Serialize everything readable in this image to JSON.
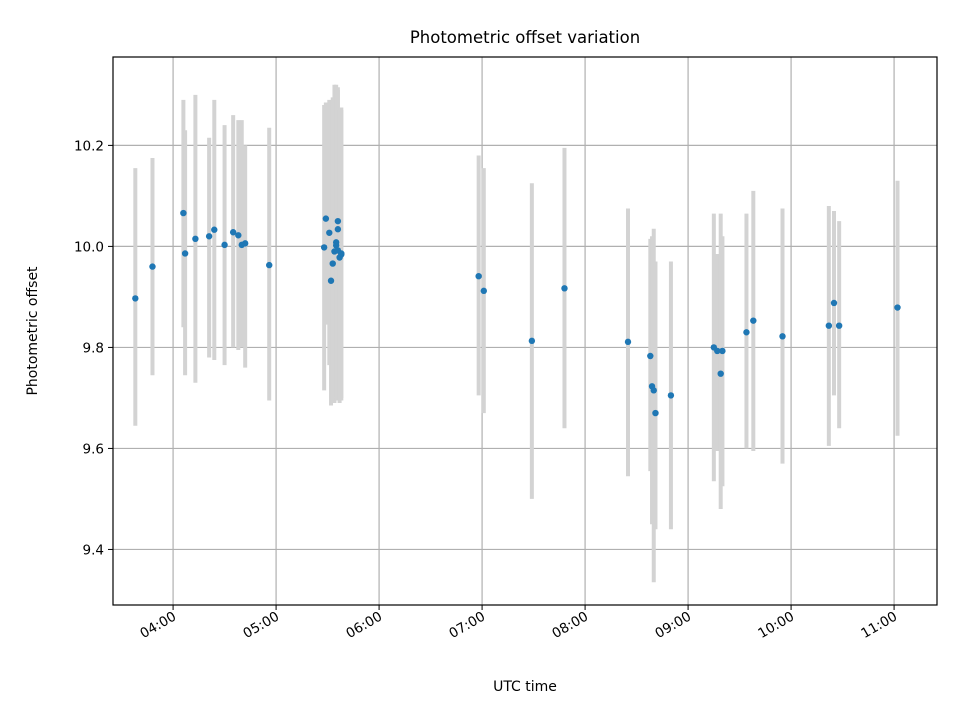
{
  "chart_data": {
    "type": "scatter",
    "title": "Photometric offset variation",
    "xlabel": "UTC time",
    "ylabel": "Photometric offset",
    "x_ticks": [
      "04:00",
      "05:00",
      "06:00",
      "07:00",
      "08:00",
      "09:00",
      "10:00",
      "11:00"
    ],
    "y_ticks": [
      "9.4",
      "9.6",
      "9.8",
      "10.0",
      "10.2"
    ],
    "xlim": [
      "03:25",
      "11:25"
    ],
    "ylim": [
      9.29,
      10.375
    ],
    "grid": true,
    "colors": {
      "point": "#1f77b4",
      "errorbar": "#d3d3d3",
      "grid": "#b0b0b0"
    },
    "series": [
      {
        "x": [
          "03:38",
          "03:48",
          "04:06",
          "04:07",
          "04:13",
          "04:21",
          "04:24",
          "04:30",
          "04:35",
          "04:38",
          "04:40",
          "04:42",
          "04:56",
          "05:28",
          "05:29",
          "05:31",
          "05:32",
          "05:33",
          "05:34",
          "05:35",
          "05:35",
          "05:36",
          "05:36",
          "05:36",
          "05:37",
          "05:38",
          "05:38",
          "06:58",
          "07:01",
          "07:29",
          "07:48",
          "08:25",
          "08:38",
          "08:39",
          "08:40",
          "08:41",
          "08:50",
          "09:15",
          "09:17",
          "09:19",
          "09:20",
          "09:34",
          "09:38",
          "09:55",
          "10:22",
          "10:25",
          "10:28",
          "11:02"
        ],
        "y": [
          9.897,
          9.96,
          10.066,
          9.986,
          10.015,
          10.02,
          10.033,
          10.003,
          10.028,
          10.022,
          10.003,
          10.006,
          9.963,
          9.998,
          10.055,
          10.027,
          9.932,
          9.966,
          9.99,
          10.002,
          10.008,
          9.992,
          10.034,
          10.05,
          9.978,
          9.984,
          9.986,
          9.941,
          9.912,
          9.813,
          9.917,
          9.811,
          9.783,
          9.723,
          9.715,
          9.67,
          9.705,
          9.8,
          9.793,
          9.748,
          9.793,
          9.83,
          9.853,
          9.822,
          9.843,
          9.888,
          9.843,
          9.879
        ],
        "err_low": [
          9.645,
          9.745,
          9.84,
          9.745,
          9.73,
          9.78,
          9.775,
          9.765,
          9.8,
          9.795,
          9.8,
          9.76,
          9.695,
          9.715,
          9.845,
          9.765,
          9.685,
          9.69,
          9.69,
          9.695,
          9.7,
          9.72,
          9.7,
          9.7,
          9.69,
          9.695,
          9.7,
          9.705,
          9.67,
          9.5,
          9.64,
          9.545,
          9.555,
          9.45,
          9.335,
          9.44,
          9.44,
          9.535,
          9.595,
          9.48,
          9.525,
          9.6,
          9.595,
          9.57,
          9.605,
          9.705,
          9.64,
          9.625
        ],
        "err_high": [
          10.155,
          10.175,
          10.29,
          10.23,
          10.3,
          10.215,
          10.29,
          10.24,
          10.26,
          10.25,
          10.25,
          10.2,
          10.235,
          10.28,
          10.285,
          10.29,
          10.215,
          10.295,
          10.32,
          10.32,
          10.285,
          10.315,
          10.31,
          10.27,
          10.27,
          10.275,
          10.27,
          10.18,
          10.155,
          10.125,
          10.195,
          10.075,
          10.015,
          10.02,
          10.035,
          9.97,
          9.97,
          10.065,
          9.985,
          10.065,
          10.02,
          10.065,
          10.11,
          10.075,
          10.08,
          10.07,
          10.05,
          10.13
        ]
      }
    ]
  }
}
